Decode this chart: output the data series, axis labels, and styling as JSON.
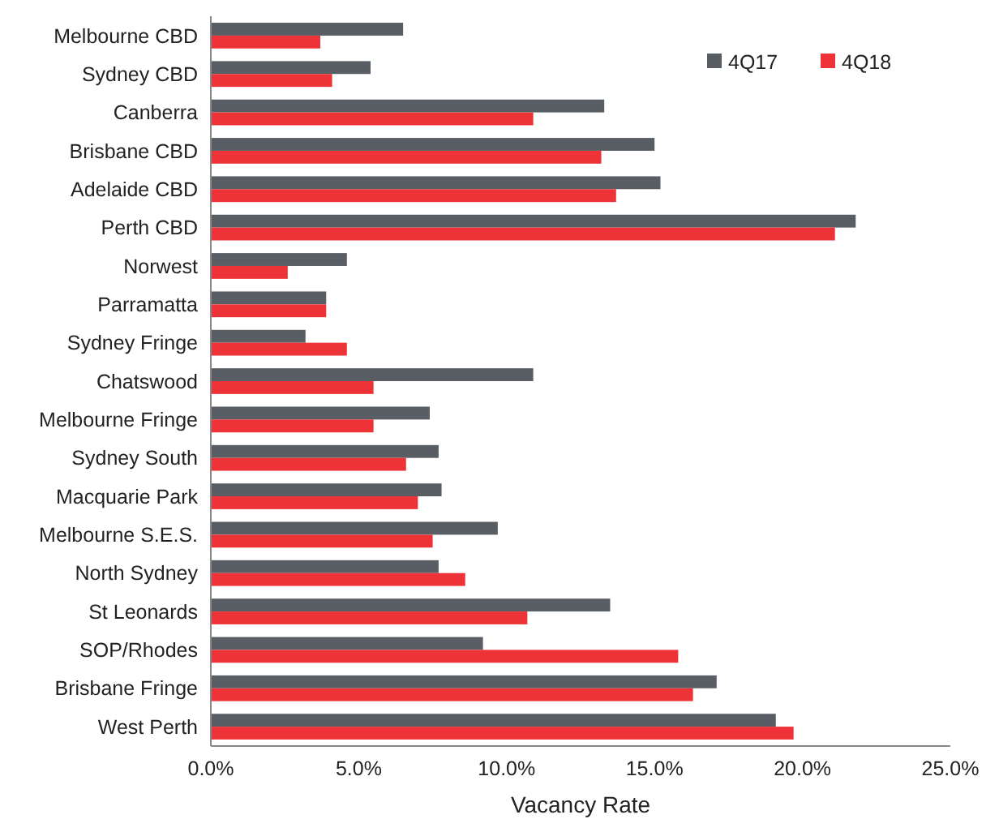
{
  "chart_data": {
    "type": "bar",
    "orientation": "horizontal",
    "xlabel": "Vacancy Rate",
    "categories": [
      "Melbourne CBD",
      "Sydney CBD",
      "Canberra",
      "Brisbane CBD",
      "Adelaide CBD",
      "Perth CBD",
      "Norwest",
      "Parramatta",
      "Sydney Fringe",
      "Chatswood",
      "Melbourne Fringe",
      "Sydney South",
      "Macquarie Park",
      "Melbourne S.E.S.",
      "North Sydney",
      "St Leonards",
      "SOP/Rhodes",
      "Brisbane Fringe",
      "West Perth"
    ],
    "series": [
      {
        "name": "4Q17",
        "color": "#595e64",
        "values": [
          6.5,
          5.4,
          13.3,
          15.0,
          15.2,
          21.8,
          4.6,
          3.9,
          3.2,
          10.9,
          7.4,
          7.7,
          7.8,
          9.7,
          7.7,
          13.5,
          9.2,
          17.1,
          19.1
        ]
      },
      {
        "name": "4Q18",
        "color": "#ee3338",
        "values": [
          3.7,
          4.1,
          10.9,
          13.2,
          13.7,
          21.1,
          2.6,
          3.9,
          4.6,
          5.5,
          5.5,
          6.6,
          7.0,
          7.5,
          8.6,
          10.7,
          15.8,
          16.3,
          19.7
        ]
      }
    ],
    "xlim": [
      0,
      25
    ],
    "xticks": [
      {
        "value": 0,
        "label": "0.0%"
      },
      {
        "value": 5,
        "label": "5.0%"
      },
      {
        "value": 10,
        "label": "10.0%"
      },
      {
        "value": 15,
        "label": "15.0%"
      },
      {
        "value": 20,
        "label": "20.0%"
      },
      {
        "value": 25,
        "label": "25.0%"
      }
    ],
    "grid": false,
    "legend": "top right"
  }
}
